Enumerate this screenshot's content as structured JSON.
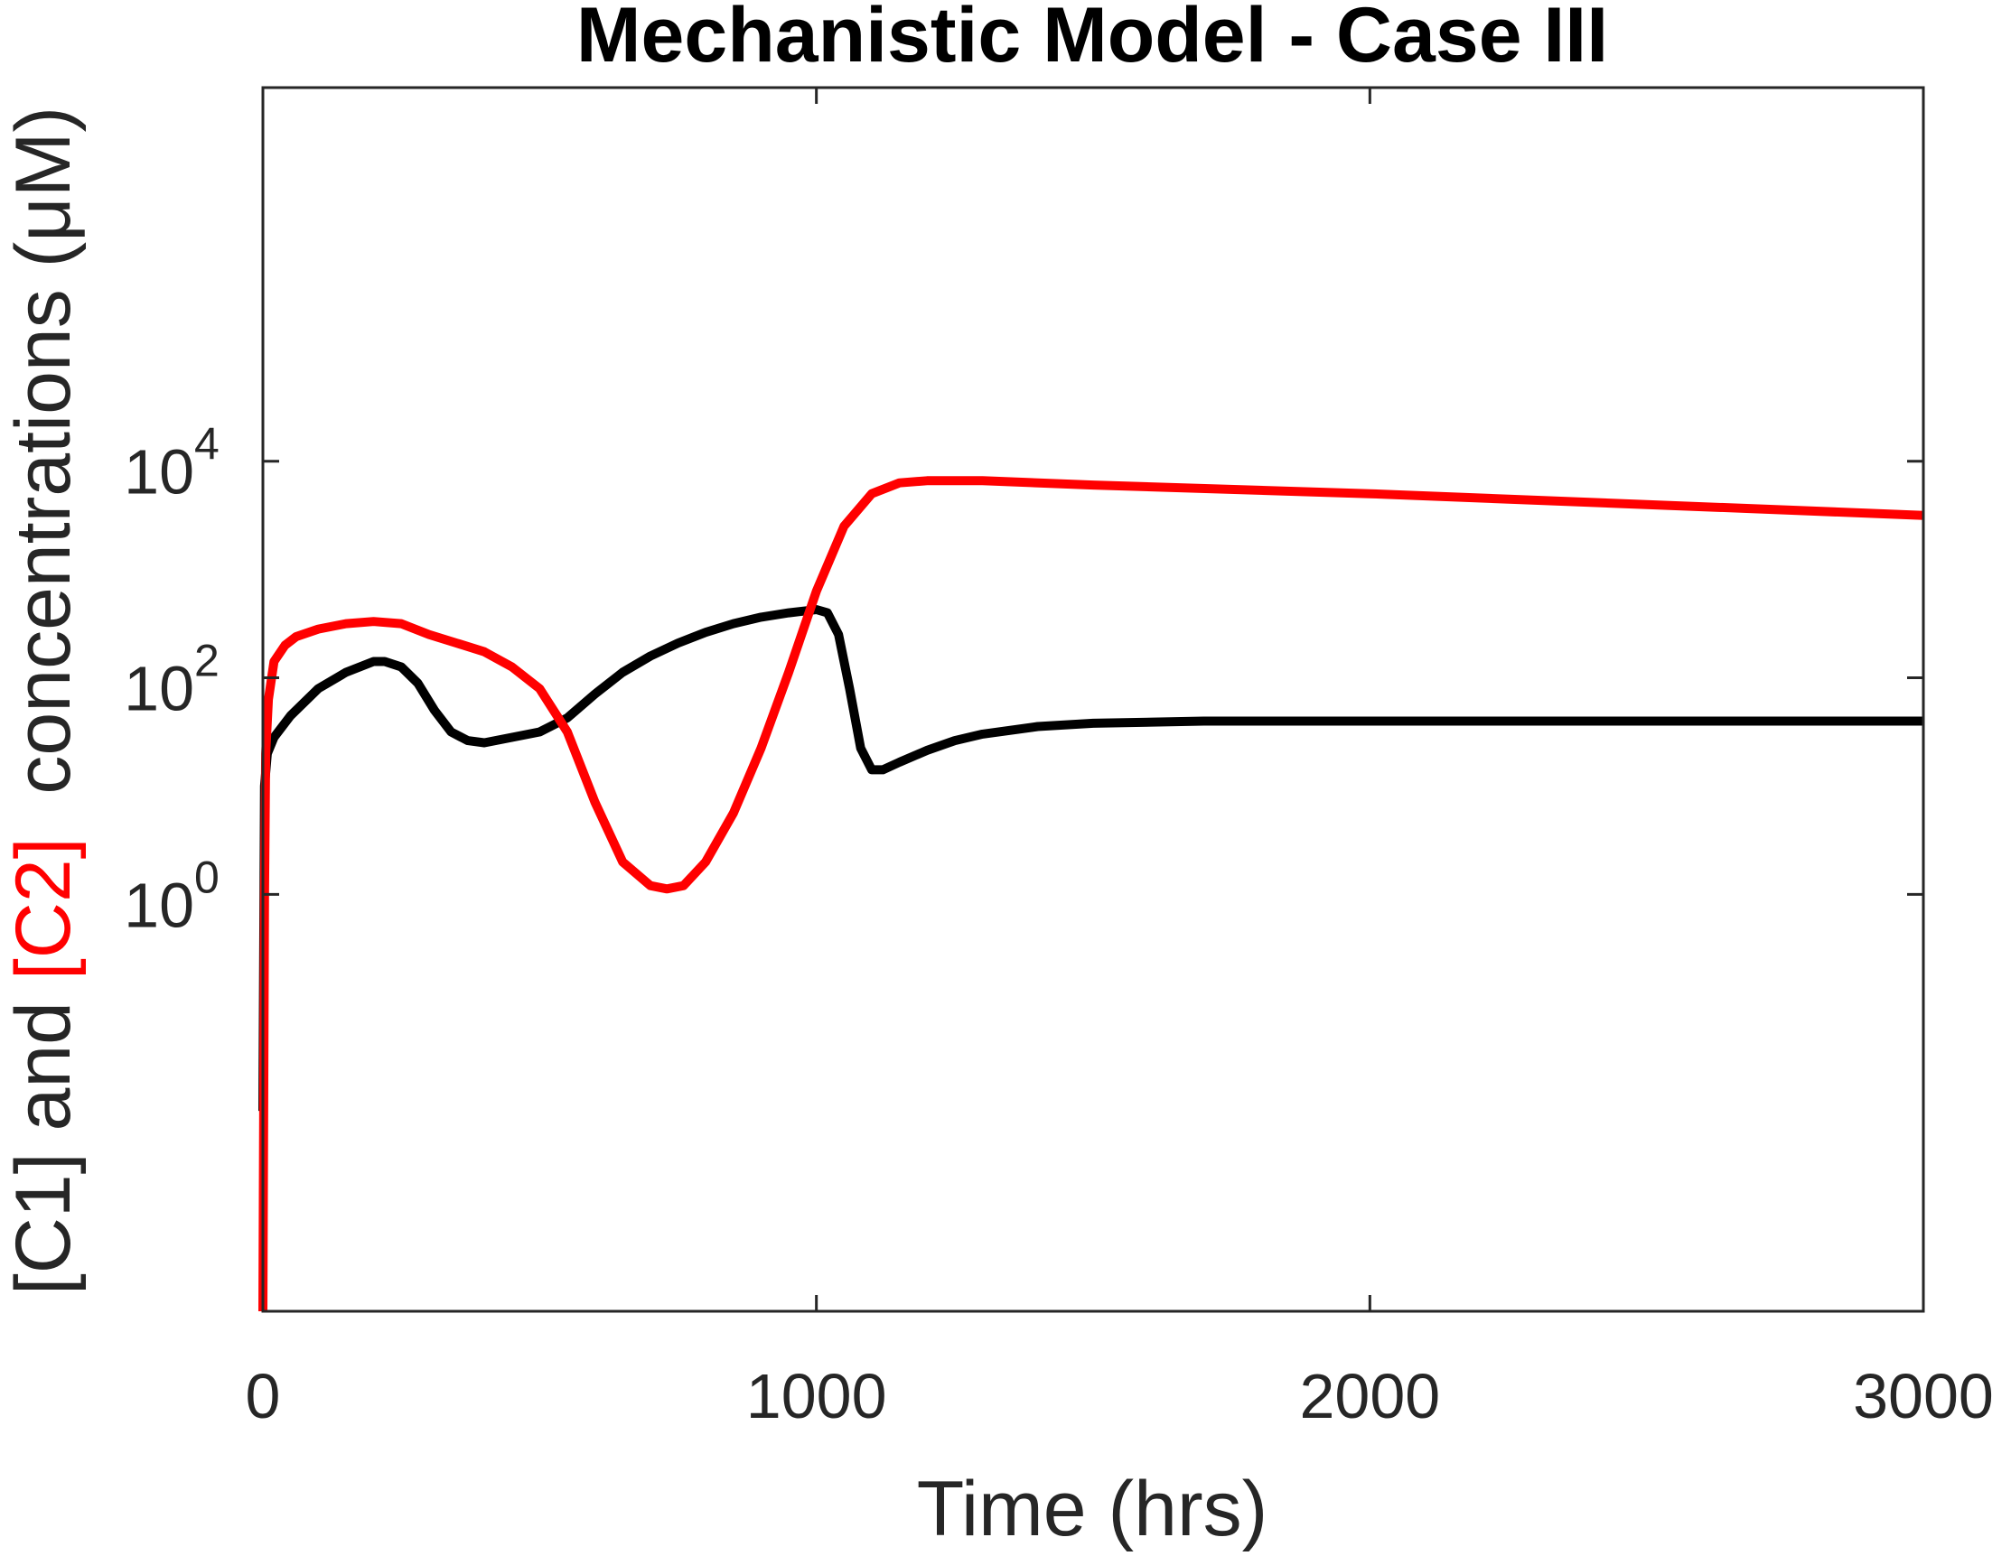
{
  "chart_data": {
    "type": "line",
    "title": "Mechanistic Model - Case III",
    "xlabel": "Time (hrs)",
    "ylabel_parts": [
      {
        "text": "[C1]",
        "color": "#262626"
      },
      {
        "text": " and ",
        "color": "#262626"
      },
      {
        "text": "[C2]",
        "color": "#ff0000"
      },
      {
        "text": "  concentrations (μM)",
        "color": "#262626"
      }
    ],
    "xlim": [
      0,
      3000
    ],
    "ylim_log10": [
      -3.85,
      7.45
    ],
    "yscale": "log",
    "xticks": [
      {
        "value": 0,
        "label": "0"
      },
      {
        "value": 1000,
        "label": "1000"
      },
      {
        "value": 2000,
        "label": "2000"
      },
      {
        "value": 3000,
        "label": "3000"
      }
    ],
    "yticks": [
      {
        "log": 0,
        "base": "10",
        "exp": "0"
      },
      {
        "log": 2,
        "base": "10",
        "exp": "2"
      },
      {
        "log": 4,
        "base": "10",
        "exp": "4"
      }
    ],
    "grid": false,
    "series": [
      {
        "color": "#000000",
        "points": [
          [
            0,
            -2.0
          ],
          [
            3,
            1.0
          ],
          [
            8,
            1.3
          ],
          [
            20,
            1.45
          ],
          [
            50,
            1.65
          ],
          [
            100,
            1.9
          ],
          [
            150,
            2.05
          ],
          [
            200,
            2.15
          ],
          [
            220,
            2.15
          ],
          [
            250,
            2.1
          ],
          [
            280,
            1.95
          ],
          [
            310,
            1.7
          ],
          [
            340,
            1.5
          ],
          [
            370,
            1.42
          ],
          [
            400,
            1.4
          ],
          [
            450,
            1.45
          ],
          [
            500,
            1.5
          ],
          [
            550,
            1.63
          ],
          [
            600,
            1.85
          ],
          [
            650,
            2.05
          ],
          [
            700,
            2.2
          ],
          [
            750,
            2.32
          ],
          [
            800,
            2.42
          ],
          [
            850,
            2.5
          ],
          [
            900,
            2.56
          ],
          [
            950,
            2.6
          ],
          [
            1000,
            2.63
          ],
          [
            1020,
            2.6
          ],
          [
            1040,
            2.4
          ],
          [
            1060,
            1.9
          ],
          [
            1080,
            1.35
          ],
          [
            1100,
            1.15
          ],
          [
            1120,
            1.15
          ],
          [
            1150,
            1.22
          ],
          [
            1200,
            1.33
          ],
          [
            1250,
            1.42
          ],
          [
            1300,
            1.48
          ],
          [
            1400,
            1.55
          ],
          [
            1500,
            1.58
          ],
          [
            1700,
            1.6
          ],
          [
            2000,
            1.6
          ],
          [
            2500,
            1.6
          ],
          [
            3000,
            1.6
          ]
        ]
      },
      {
        "color": "#ff0000",
        "points": [
          [
            0,
            -3.85
          ],
          [
            3,
            0.0
          ],
          [
            5,
            1.3
          ],
          [
            10,
            1.8
          ],
          [
            20,
            2.15
          ],
          [
            40,
            2.3
          ],
          [
            60,
            2.38
          ],
          [
            100,
            2.45
          ],
          [
            150,
            2.5
          ],
          [
            200,
            2.52
          ],
          [
            250,
            2.5
          ],
          [
            300,
            2.4
          ],
          [
            350,
            2.32
          ],
          [
            400,
            2.24
          ],
          [
            450,
            2.1
          ],
          [
            500,
            1.9
          ],
          [
            550,
            1.5
          ],
          [
            600,
            0.85
          ],
          [
            650,
            0.3
          ],
          [
            700,
            0.08
          ],
          [
            730,
            0.05
          ],
          [
            760,
            0.08
          ],
          [
            800,
            0.3
          ],
          [
            850,
            0.75
          ],
          [
            900,
            1.35
          ],
          [
            950,
            2.05
          ],
          [
            1000,
            2.8
          ],
          [
            1050,
            3.4
          ],
          [
            1100,
            3.7
          ],
          [
            1150,
            3.8
          ],
          [
            1200,
            3.82
          ],
          [
            1300,
            3.82
          ],
          [
            1500,
            3.78
          ],
          [
            2000,
            3.7
          ],
          [
            2500,
            3.6
          ],
          [
            3000,
            3.5
          ]
        ]
      }
    ]
  }
}
